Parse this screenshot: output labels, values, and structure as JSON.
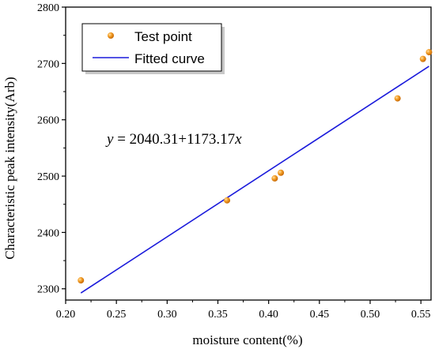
{
  "chart_data": {
    "type": "scatter",
    "xlabel": "moisture content(%)",
    "ylabel": "Characteristic peak intensity(Arb)",
    "xlim": [
      0.2,
      0.56
    ],
    "ylim": [
      2280,
      2800
    ],
    "x_ticks": [
      "0.20",
      "0.25",
      "0.30",
      "0.35",
      "0.40",
      "0.45",
      "0.50",
      "0.55"
    ],
    "y_ticks": [
      "2300",
      "2400",
      "2500",
      "2600",
      "2700",
      "2800"
    ],
    "grid": false,
    "legend_position": "top-left",
    "series": [
      {
        "name": "Test point",
        "kind": "scatter",
        "color": "#f39c1f",
        "points": [
          {
            "x": 0.215,
            "y": 2315
          },
          {
            "x": 0.359,
            "y": 2457
          },
          {
            "x": 0.406,
            "y": 2496
          },
          {
            "x": 0.412,
            "y": 2506
          },
          {
            "x": 0.527,
            "y": 2638
          },
          {
            "x": 0.552,
            "y": 2708
          },
          {
            "x": 0.558,
            "y": 2720
          }
        ]
      },
      {
        "name": "Fitted curve",
        "kind": "line",
        "color": "#1a1adb",
        "points": [
          {
            "x": 0.215,
            "y": 2292.55
          },
          {
            "x": 0.558,
            "y": 2694.96
          }
        ]
      }
    ],
    "equation": {
      "var_y": "y",
      "eq": " = 2040.31+1173.17",
      "var_x": "x"
    }
  }
}
